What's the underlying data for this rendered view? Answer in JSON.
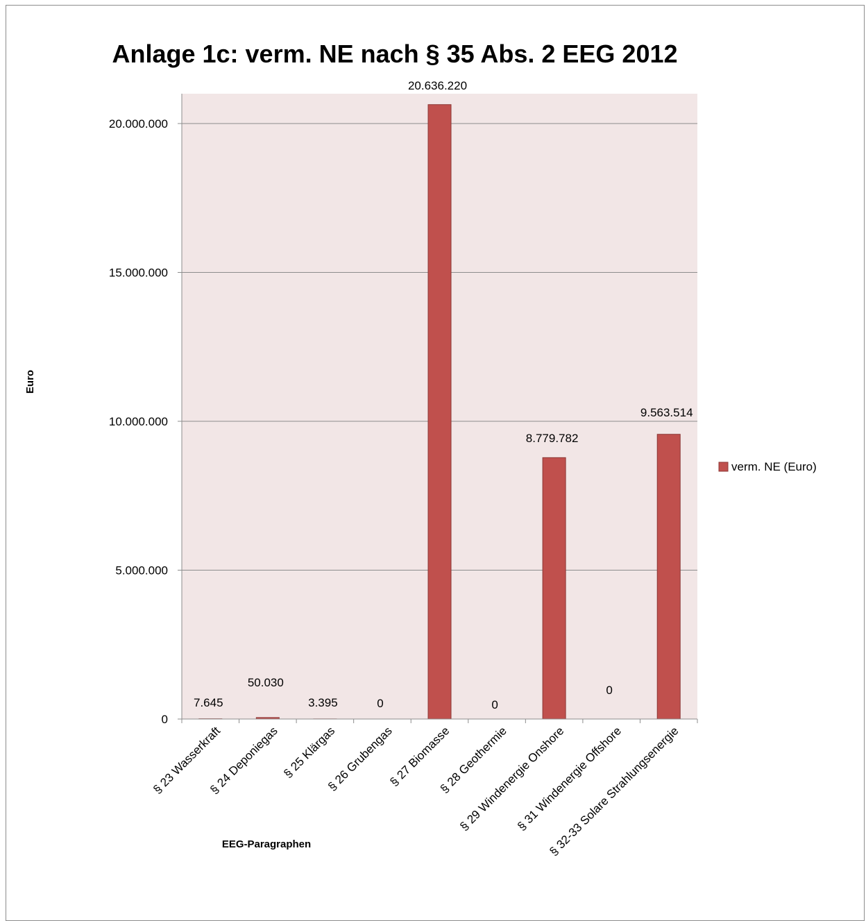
{
  "chart_data": {
    "type": "bar",
    "title": "Anlage 1c: verm. NE nach § 35 Abs. 2 EEG 2012",
    "xlabel": "EEG-Paragraphen",
    "ylabel": "Euro",
    "ylim": [
      0,
      21000000
    ],
    "yticks": [
      0,
      5000000,
      10000000,
      15000000,
      20000000
    ],
    "ytick_labels": [
      "0",
      "5.000.000",
      "10.000.000",
      "15.000.000",
      "20.000.000"
    ],
    "grid": true,
    "legend_position": "right",
    "categories": [
      "§ 23 Wasserkraft",
      "§ 24 Deponiegas",
      "§ 25 Klärgas",
      "§ 26 Grubengas",
      "§ 27 Biomasse",
      "§ 28 Geothermie",
      "§ 29 Windenergie Onshore",
      "§ 31 Windenergie Offshore",
      "§ 32-33 Solare Strahlungsenergie"
    ],
    "series": [
      {
        "name": "verm. NE (Euro)",
        "color": "#c0504d",
        "values": [
          7645,
          50030,
          3395,
          0,
          20636220,
          0,
          8779782,
          0,
          9563514
        ],
        "data_labels": [
          "7.645",
          "50.030",
          "3.395",
          "0",
          "20.636.220",
          "0",
          "8.779.782",
          "0",
          "9.563.514"
        ]
      }
    ],
    "colors": {
      "plot_background": "#f2e6e6",
      "bar": "#c0504d",
      "bar_border": "#8c3836",
      "grid": "#8c8c8c"
    }
  }
}
